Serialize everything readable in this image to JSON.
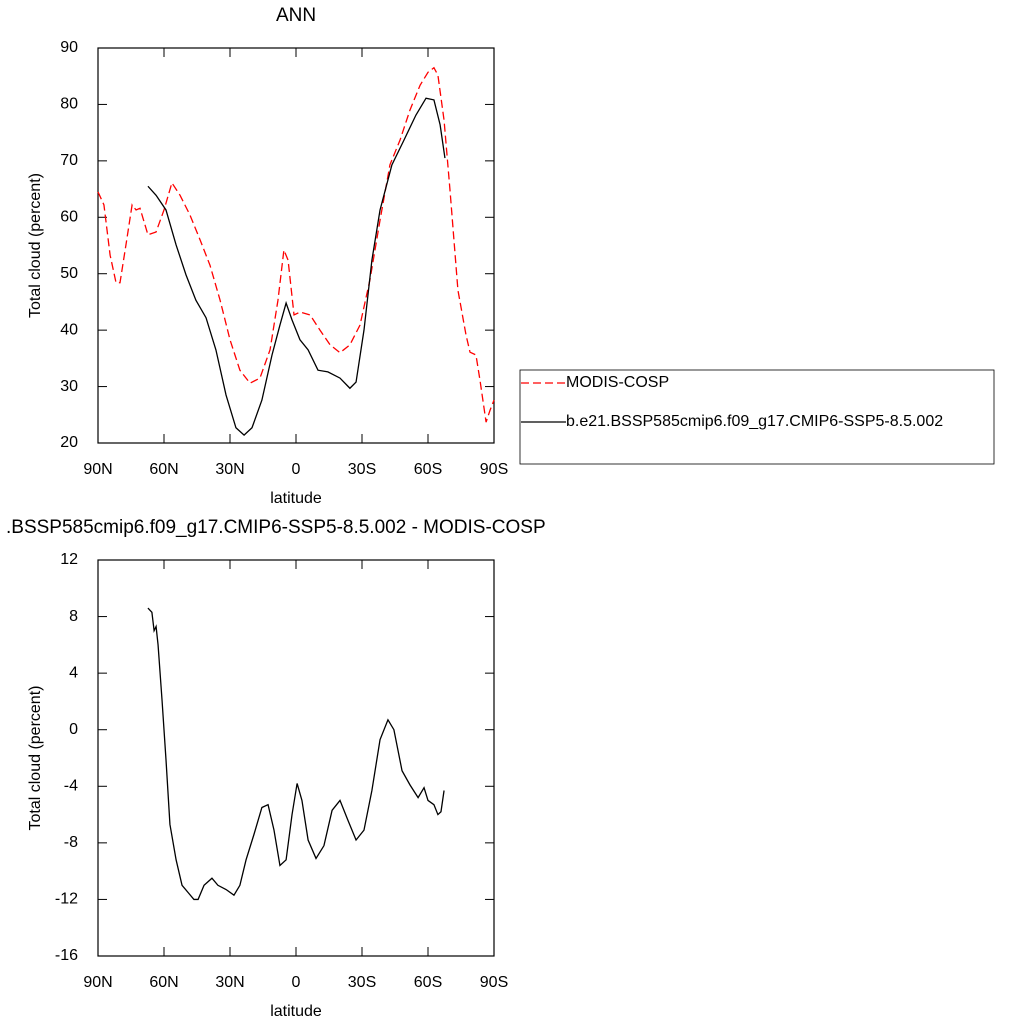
{
  "chart_data": [
    {
      "type": "line",
      "title": "ANN",
      "xlabel": "latitude",
      "ylabel": "Total cloud (percent)",
      "xlim": [
        90,
        -90
      ],
      "ylim": [
        20,
        90
      ],
      "xticks": [
        {
          "value": 90,
          "label": "90N"
        },
        {
          "value": 60,
          "label": "60N"
        },
        {
          "value": 30,
          "label": "30N"
        },
        0,
        {
          "value": -30,
          "label": "30S"
        },
        {
          "value": -60,
          "label": "60S"
        },
        {
          "value": -90,
          "label": "90S"
        }
      ],
      "yticks": [
        20,
        30,
        40,
        50,
        60,
        70,
        80,
        90
      ],
      "series": [
        {
          "name": "MODIS-COSP",
          "color": "#ff0000",
          "dashed": true,
          "x": [
            90,
            87.3,
            84.5,
            81.8,
            80,
            77.3,
            74.5,
            72.7,
            70.9,
            67.3,
            63.6,
            60,
            56.4,
            52.7,
            48.2,
            43.6,
            39.1,
            34.5,
            30,
            25.5,
            20.9,
            16.4,
            11.8,
            8.2,
            5.5,
            3.6,
            0.9,
            -1.8,
            -6.4,
            -10.9,
            -15.5,
            -20,
            -24.5,
            -29.1,
            -33.6,
            -38.2,
            -42.7,
            -47.3,
            -51.8,
            -56.4,
            -60,
            -62.7,
            -64.5,
            -67.3,
            -70,
            -73.6,
            -77.3,
            -79.1,
            -81.8,
            -83.6,
            -86.4,
            -88.2,
            -90
          ],
          "values": [
            64.5,
            62.2,
            53.3,
            48.4,
            48.4,
            55.1,
            62.2,
            61.3,
            61.6,
            56.9,
            57.4,
            61.3,
            66.1,
            63.9,
            60.4,
            56,
            51.5,
            45.3,
            38.3,
            32.9,
            30.6,
            31.5,
            36.5,
            45.3,
            54.2,
            52.4,
            42.7,
            43.2,
            42.7,
            40,
            37.4,
            36,
            37.4,
            40.9,
            48.9,
            59.5,
            69.3,
            73.7,
            79,
            83.4,
            85.7,
            86.5,
            85.2,
            77.2,
            64.8,
            47.1,
            39.1,
            36.1,
            35.6,
            31.2,
            23.7,
            25.8,
            27.6
          ]
        },
        {
          "name": "b.e21.BSSP585cmip6.f09_g17.CMIP6-SSP5-8.5.002",
          "color": "#000000",
          "dashed": false,
          "x": [
            67.3,
            63.6,
            59.1,
            54.5,
            50,
            45.5,
            40.9,
            36.4,
            31.8,
            27.3,
            23.6,
            20,
            15.5,
            10.9,
            7.3,
            4.5,
            1.8,
            -1.8,
            -5.5,
            -10,
            -14.5,
            -20,
            -24.5,
            -27.3,
            -30.9,
            -34.5,
            -38.2,
            -43.6,
            -49.1,
            -54.5,
            -59.1,
            -62.7,
            -65.5,
            -67.7
          ],
          "values": [
            65.5,
            63.9,
            61.3,
            55.1,
            49.8,
            45.3,
            42.2,
            36.5,
            28.5,
            22.7,
            21.4,
            22.7,
            27.6,
            35.6,
            40.9,
            44.8,
            41.8,
            38.3,
            36.5,
            32.9,
            32.6,
            31.5,
            29.7,
            30.8,
            40,
            52.4,
            61.3,
            69.3,
            73.7,
            78.1,
            81.1,
            80.8,
            76.4,
            70.5
          ]
        }
      ]
    },
    {
      "type": "line",
      "title": ".BSSP585cmip6.f09_g17.CMIP6-SSP5-8.5.002 - MODIS-COSP",
      "xlabel": "latitude",
      "ylabel": "Total cloud (percent)",
      "xlim": [
        90,
        -90
      ],
      "ylim": [
        -16,
        12
      ],
      "xticks": [
        {
          "value": 90,
          "label": "90N"
        },
        {
          "value": 60,
          "label": "60N"
        },
        {
          "value": 30,
          "label": "30N"
        },
        0,
        {
          "value": -30,
          "label": "30S"
        },
        {
          "value": -60,
          "label": "60S"
        },
        {
          "value": -90,
          "label": "90S"
        }
      ],
      "yticks": [
        -16,
        -12,
        -8,
        -4,
        0,
        4,
        8,
        12
      ],
      "series": [
        {
          "color": "#000000",
          "dashed": false,
          "x": [
            67.3,
            65.5,
            64.5,
            63.6,
            62.7,
            60.9,
            59.1,
            57.3,
            54.5,
            51.8,
            49.1,
            46.4,
            44.5,
            41.8,
            38.2,
            35.5,
            31.8,
            28.2,
            25.5,
            22.7,
            19.1,
            15.5,
            12.7,
            10,
            7.3,
            4.5,
            1.8,
            -0.5,
            -2.7,
            -5.5,
            -9.1,
            -12.7,
            -16.4,
            -20,
            -23.6,
            -27.3,
            -30.9,
            -34.5,
            -38.2,
            -41.8,
            -44.5,
            -48.2,
            -51.8,
            -55.5,
            -58.2,
            -60,
            -62.7,
            -64.5,
            -65.9,
            -67.3
          ],
          "values": [
            8.6,
            8.3,
            7,
            7.3,
            6,
            2.1,
            -2.1,
            -6.7,
            -9.2,
            -11,
            -11.5,
            -12,
            -12,
            -11,
            -10.5,
            -11,
            -11.3,
            -11.7,
            -11,
            -9.2,
            -7.4,
            -5.5,
            -5.3,
            -7.1,
            -9.6,
            -9.2,
            -6,
            -3.8,
            -5,
            -7.8,
            -9.1,
            -8.2,
            -5.7,
            -5,
            -6.4,
            -7.8,
            -7.1,
            -4.3,
            -0.7,
            0.7,
            0,
            -2.9,
            -3.9,
            -4.8,
            -4.1,
            -5,
            -5.3,
            -6,
            -5.8,
            -4.3
          ]
        }
      ]
    }
  ]
}
